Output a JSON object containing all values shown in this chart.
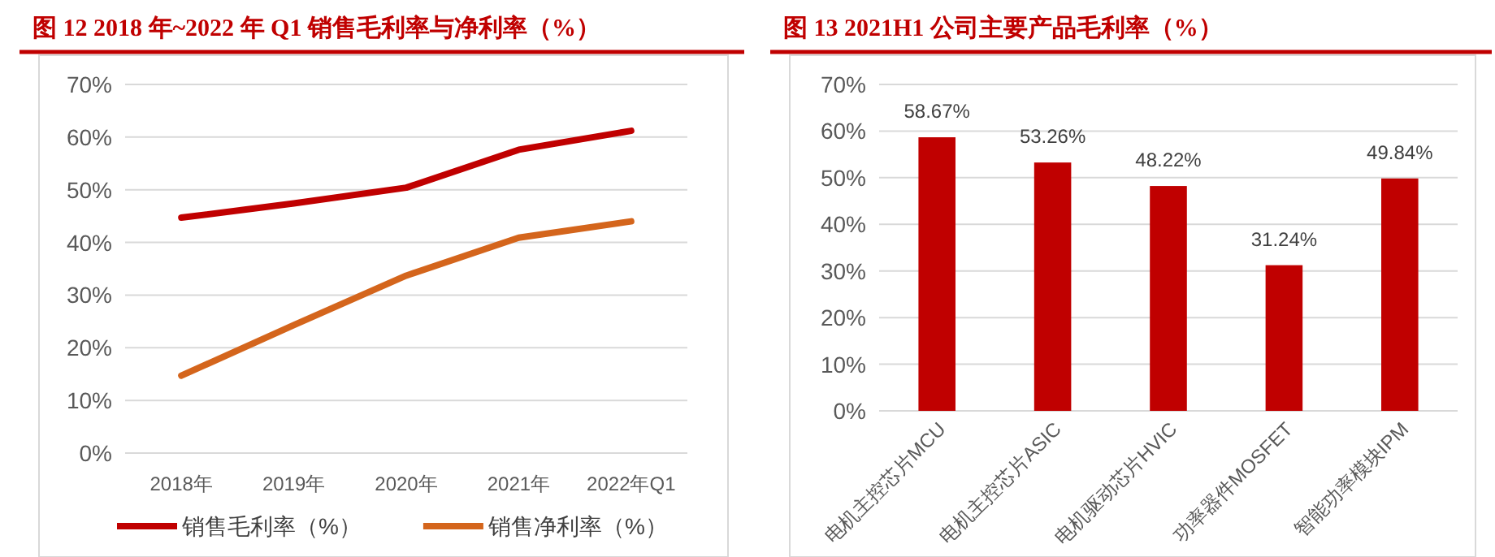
{
  "chart_data": [
    {
      "type": "line",
      "title": "图 12 2018 年~2022 年 Q1 销售毛利率与净利率（%）",
      "categories": [
        "2018年",
        "2019年",
        "2020年",
        "2021年",
        "2022年Q1"
      ],
      "series": [
        {
          "name": "销售毛利率（%）",
          "color": "#c00000",
          "values": [
            44.7,
            47.4,
            50.4,
            57.6,
            61.2
          ]
        },
        {
          "name": "销售净利率（%）",
          "color": "#d4651c",
          "values": [
            14.7,
            24.3,
            33.7,
            40.9,
            44.0
          ]
        }
      ],
      "ylim": [
        0,
        70
      ],
      "yticks": [
        {
          "value": 0,
          "label": "0%"
        },
        {
          "value": 10,
          "label": "10%"
        },
        {
          "value": 20,
          "label": "20%"
        },
        {
          "value": 30,
          "label": "30%"
        },
        {
          "value": 40,
          "label": "40%"
        },
        {
          "value": 50,
          "label": "50%"
        },
        {
          "value": 60,
          "label": "60%"
        },
        {
          "value": 70,
          "label": "70%"
        }
      ],
      "grid": "y",
      "legend": "bottom",
      "marker": "none",
      "line_style": "solid"
    },
    {
      "type": "bar",
      "title": "图 13 2021H1 公司主要产品毛利率（%）",
      "categories": [
        "电机主控芯片MCU",
        "电机主控芯片ASIC",
        "电机驱动芯片HVIC",
        "功率器件MOSFET",
        "智能功率模块IPM"
      ],
      "values": [
        58.67,
        53.26,
        48.22,
        31.24,
        49.84
      ],
      "color": "#c00000",
      "value_labels": [
        "58.67%",
        "53.26%",
        "48.22%",
        "31.24%",
        "49.84%"
      ],
      "ylim": [
        0,
        70
      ],
      "yticks": [
        {
          "value": 0,
          "label": "0%"
        },
        {
          "value": 10,
          "label": "10%"
        },
        {
          "value": 20,
          "label": "20%"
        },
        {
          "value": 30,
          "label": "30%"
        },
        {
          "value": 40,
          "label": "40%"
        },
        {
          "value": 50,
          "label": "50%"
        },
        {
          "value": 60,
          "label": "60%"
        },
        {
          "value": 70,
          "label": "70%"
        }
      ],
      "grid": "y",
      "legend": false
    }
  ]
}
